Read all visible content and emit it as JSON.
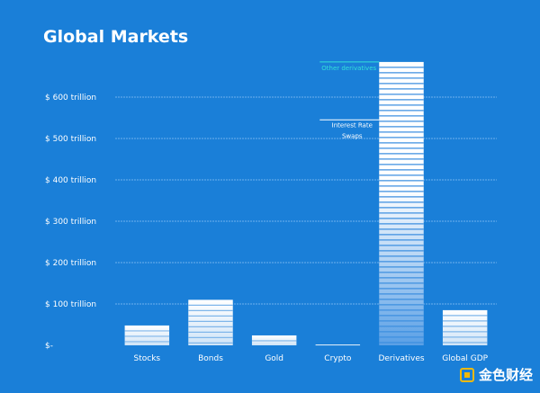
{
  "title": "Global Markets",
  "watermark": "金色财经",
  "colors": {
    "background": "#1a7fd8",
    "bar_top": "#ffffff",
    "bar_bottom": "#cfe4f7",
    "derivatives_bottom": "#5aa0e6",
    "annotation_other": "#33e0d8",
    "annotation_irs": "#ffffff",
    "grid": "#6fb0ee"
  },
  "chart_data": {
    "type": "bar",
    "title": "Global Markets",
    "categories": [
      "Stocks",
      "Bonds",
      "Gold",
      "Crypto",
      "Derivatives",
      "Global GDP"
    ],
    "values": [
      48,
      110,
      24,
      2,
      685,
      85
    ],
    "unit": "trillion USD",
    "ylim": [
      0,
      700
    ],
    "yticks": [
      0,
      100,
      200,
      300,
      400,
      500,
      600
    ],
    "ytick_labels": [
      "$-",
      "$ 100 trillion",
      "$ 200 trillion",
      "$ 300 trillion",
      "$ 400 trillion",
      "$ 500 trillion",
      "$ 600 trillion"
    ],
    "grid": true,
    "annotations": [
      {
        "text": "Other derivatives",
        "category": "Derivatives",
        "y": 685
      },
      {
        "text_lines": [
          "Interest Rate",
          "Swaps"
        ],
        "category": "Derivatives",
        "y": 545
      }
    ]
  }
}
